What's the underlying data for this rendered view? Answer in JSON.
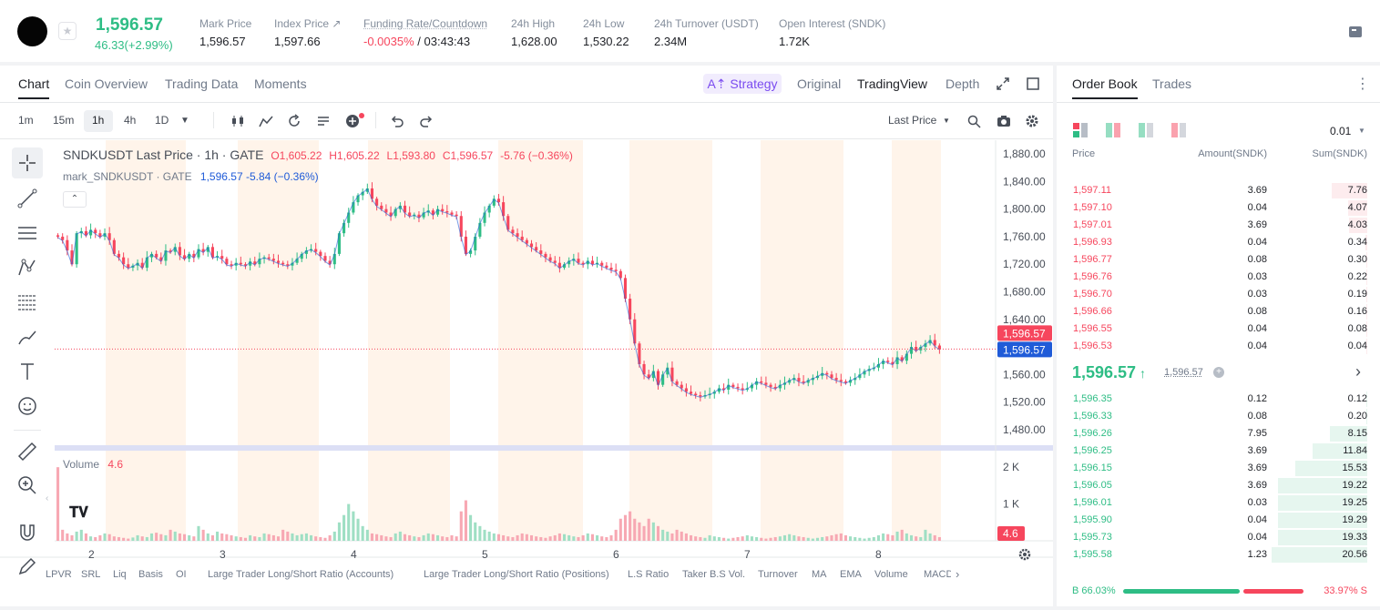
{
  "header": {
    "price": "1,596.57",
    "change": "46.33(+2.99%)",
    "stats": [
      {
        "label": "Mark Price",
        "value": "1,596.57"
      },
      {
        "label": "Index Price ↗",
        "value": "1,597.66"
      },
      {
        "label": "Funding Rate/Countdown",
        "value_neg": "-0.0035%",
        "value_rest": " / 03:43:43"
      },
      {
        "label": "24h High",
        "value": "1,628.00"
      },
      {
        "label": "24h Low",
        "value": "1,530.22"
      },
      {
        "label": "24h Turnover (USDT)",
        "value": "2.34M"
      },
      {
        "label": "Open Interest (SNDK)",
        "value": "1.72K"
      }
    ]
  },
  "chart_tabs": [
    "Chart",
    "Coin Overview",
    "Trading Data",
    "Moments"
  ],
  "view_tabs": {
    "strategy": "Strategy",
    "original": "Original",
    "tradingview": "TradingView",
    "depth": "Depth"
  },
  "timeframes": [
    "1m",
    "15m",
    "1h",
    "4h",
    "1D"
  ],
  "price_type": "Last Price",
  "legend": {
    "title": "SNDKUSDT Last Price · 1h · GATE",
    "o": "O1,605.22",
    "h": "H1,605.22",
    "l": "L1,593.80",
    "c": "C1,596.57",
    "chg": "-5.76 (−0.36%)",
    "mark_name": "mark_SNDKUSDT · GATE",
    "mark_vals": "1,596.57 -5.84 (−0.36%)",
    "volume_label": "Volume",
    "volume_val": "4.6"
  },
  "price_axis": [
    "1,880.00",
    "1,840.00",
    "1,800.00",
    "1,760.00",
    "1,720.00",
    "1,680.00",
    "1,640.00",
    "1,600.00",
    "1,560.00",
    "1,520.00",
    "1,480.00"
  ],
  "price_tags": {
    "last": "1,596.57",
    "mark": "1,596.57"
  },
  "volume_axis": [
    "2 K",
    "1 K"
  ],
  "volume_tag": "4.6",
  "time_axis": [
    "2",
    "3",
    "4",
    "5",
    "6",
    "7",
    "8"
  ],
  "indicators": [
    "LPVR",
    "SRL",
    "Liq",
    "Basis",
    "OI",
    "Large Trader Long/Short Ratio (Accounts)",
    "Large Trader Long/Short Ratio (Positions)",
    "L.S Ratio",
    "Taker B.S Vol.",
    "Turnover",
    "MA",
    "EMA",
    "Volume",
    "MACD"
  ],
  "colors": {
    "up": "#2ebd85",
    "down": "#f6465d",
    "accent": "#7b4cf0",
    "mark": "#1f5bd8"
  },
  "chart_data": {
    "type": "candlestick",
    "interval": "1h",
    "closes": [
      1760,
      1755,
      1740,
      1720,
      1765,
      1768,
      1762,
      1770,
      1765,
      1760,
      1765,
      1755,
      1735,
      1730,
      1720,
      1715,
      1718,
      1722,
      1715,
      1730,
      1735,
      1730,
      1725,
      1740,
      1738,
      1745,
      1733,
      1728,
      1735,
      1730,
      1742,
      1738,
      1745,
      1730,
      1732,
      1728,
      1720,
      1718,
      1722,
      1720,
      1718,
      1724,
      1720,
      1728,
      1730,
      1728,
      1725,
      1722,
      1720,
      1718,
      1722,
      1728,
      1735,
      1740,
      1742,
      1738,
      1732,
      1725,
      1720,
      1735,
      1765,
      1780,
      1795,
      1810,
      1820,
      1825,
      1830,
      1815,
      1805,
      1800,
      1795,
      1790,
      1800,
      1805,
      1795,
      1790,
      1792,
      1788,
      1795,
      1798,
      1792,
      1800,
      1797,
      1795,
      1792,
      1790,
      1760,
      1735,
      1740,
      1760,
      1780,
      1795,
      1805,
      1815,
      1810,
      1790,
      1770,
      1765,
      1760,
      1755,
      1750,
      1745,
      1740,
      1735,
      1730,
      1725,
      1722,
      1715,
      1720,
      1725,
      1728,
      1722,
      1720,
      1725,
      1720,
      1722,
      1718,
      1715,
      1712,
      1710,
      1700,
      1670,
      1640,
      1605,
      1575,
      1560,
      1555,
      1565,
      1545,
      1560,
      1570,
      1550,
      1545,
      1540,
      1535,
      1532,
      1530,
      1528,
      1530,
      1532,
      1535,
      1540,
      1538,
      1545,
      1542,
      1540,
      1538,
      1540,
      1545,
      1550,
      1548,
      1545,
      1542,
      1540,
      1545,
      1548,
      1552,
      1555,
      1550,
      1548,
      1552,
      1555,
      1558,
      1562,
      1560,
      1555,
      1552,
      1550,
      1548,
      1552,
      1555,
      1560,
      1565,
      1568,
      1570,
      1575,
      1580,
      1578,
      1575,
      1585,
      1580,
      1590,
      1600,
      1595,
      1600,
      1605,
      1610,
      1602,
      1597
    ],
    "volumes": [
      2000,
      300,
      200,
      150,
      250,
      300,
      200,
      120,
      100,
      150,
      200,
      180,
      120,
      100,
      80,
      60,
      90,
      150,
      120,
      100,
      200,
      220,
      180,
      150,
      300,
      250,
      200,
      180,
      150,
      120,
      400,
      300,
      200,
      150,
      250,
      200,
      180,
      150,
      120,
      100,
      80,
      150,
      120,
      100,
      200,
      180,
      150,
      120,
      300,
      250,
      200,
      150,
      180,
      200,
      150,
      120,
      100,
      80,
      150,
      250,
      500,
      700,
      1000,
      800,
      600,
      400,
      300,
      200,
      180,
      150,
      120,
      100,
      200,
      250,
      180,
      150,
      120,
      100,
      150,
      200,
      180,
      150,
      120,
      100,
      150,
      120,
      800,
      1100,
      700,
      500,
      400,
      300,
      250,
      200,
      180,
      150,
      120,
      100,
      150,
      200,
      180,
      150,
      120,
      100,
      80,
      120,
      150,
      200,
      180,
      150,
      120,
      100,
      150,
      200,
      180,
      150,
      120,
      100,
      150,
      300,
      600,
      700,
      800,
      600,
      500,
      400,
      600,
      500,
      400,
      300,
      250,
      200,
      300,
      250,
      200,
      150,
      120,
      100,
      80,
      150,
      120,
      100,
      80,
      60,
      80,
      100,
      120,
      150,
      120,
      100,
      80,
      60,
      80,
      100,
      120,
      150,
      180,
      150,
      120,
      100,
      80,
      60,
      80,
      100,
      120,
      150,
      180,
      200,
      150,
      120,
      100,
      80,
      60,
      80,
      100,
      150,
      200,
      180,
      150,
      250,
      300,
      200,
      150,
      120,
      100,
      300,
      200,
      150,
      100,
      80
    ],
    "y_range": [
      1460,
      1900
    ],
    "volume_range": [
      0,
      2400
    ]
  },
  "orderbook": {
    "tabs": [
      "Order Book",
      "Trades"
    ],
    "precision": "0.01",
    "headers": [
      "Price",
      "Amount(SNDK)",
      "Sum(SNDK)"
    ],
    "asks": [
      {
        "price": "1,597.11",
        "amount": "3.69",
        "sum": "7.76",
        "depth": 0.375
      },
      {
        "price": "1,597.10",
        "amount": "0.04",
        "sum": "4.07",
        "depth": 0.197
      },
      {
        "price": "1,597.01",
        "amount": "3.69",
        "sum": "4.03",
        "depth": 0.195
      },
      {
        "price": "1,596.93",
        "amount": "0.04",
        "sum": "0.34",
        "depth": 0.016
      },
      {
        "price": "1,596.77",
        "amount": "0.08",
        "sum": "0.30",
        "depth": 0.014
      },
      {
        "price": "1,596.76",
        "amount": "0.03",
        "sum": "0.22",
        "depth": 0.011
      },
      {
        "price": "1,596.70",
        "amount": "0.03",
        "sum": "0.19",
        "depth": 0.009
      },
      {
        "price": "1,596.66",
        "amount": "0.08",
        "sum": "0.16",
        "depth": 0.008
      },
      {
        "price": "1,596.55",
        "amount": "0.04",
        "sum": "0.08",
        "depth": 0.004
      },
      {
        "price": "1,596.53",
        "amount": "0.04",
        "sum": "0.04",
        "depth": 0.002
      }
    ],
    "last_price": "1,596.57",
    "mark_price": "1,596.57",
    "bids": [
      {
        "price": "1,596.35",
        "amount": "0.12",
        "sum": "0.12",
        "depth": 0.006
      },
      {
        "price": "1,596.33",
        "amount": "0.08",
        "sum": "0.20",
        "depth": 0.01
      },
      {
        "price": "1,596.26",
        "amount": "7.95",
        "sum": "8.15",
        "depth": 0.39
      },
      {
        "price": "1,596.25",
        "amount": "3.69",
        "sum": "11.84",
        "depth": 0.57
      },
      {
        "price": "1,596.15",
        "amount": "3.69",
        "sum": "15.53",
        "depth": 0.75
      },
      {
        "price": "1,596.05",
        "amount": "3.69",
        "sum": "19.22",
        "depth": 0.93
      },
      {
        "price": "1,596.01",
        "amount": "0.03",
        "sum": "19.25",
        "depth": 0.934
      },
      {
        "price": "1,595.90",
        "amount": "0.04",
        "sum": "19.29",
        "depth": 0.936
      },
      {
        "price": "1,595.73",
        "amount": "0.04",
        "sum": "19.33",
        "depth": 0.938
      },
      {
        "price": "1,595.58",
        "amount": "1.23",
        "sum": "20.56",
        "depth": 1.0
      }
    ],
    "buy_ratio": "B 66.03%",
    "sell_ratio": "33.97% S",
    "buy_fraction": 0.6603
  }
}
